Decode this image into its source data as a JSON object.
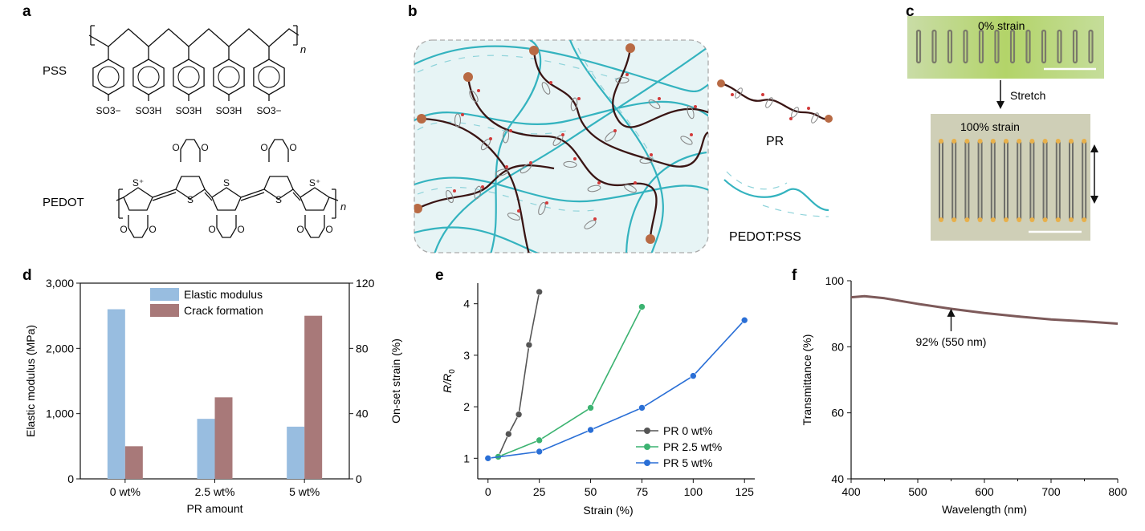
{
  "panels": {
    "a": {
      "letter": "a",
      "pss_label": "PSS",
      "pedot_label": "PEDOT",
      "pss_groups": [
        "SO3−",
        "SO3H",
        "SO3H",
        "SO3H",
        "SO3−"
      ],
      "sub_n": "n",
      "s_plus": "S⁺",
      "s": "S",
      "o": "O"
    },
    "b": {
      "letter": "b",
      "label_pr": "PR",
      "label_pedot": "PEDOT:PSS"
    },
    "c": {
      "letter": "c",
      "label_top": "0% strain",
      "label_stretch": "Stretch",
      "label_bottom": "100% strain"
    },
    "d": {
      "letter": "d"
    },
    "e": {
      "letter": "e"
    },
    "f": {
      "letter": "f"
    }
  },
  "chart_data": [
    {
      "id": "d",
      "type": "bar",
      "categories": [
        "0 wt%",
        "2.5 wt%",
        "5 wt%"
      ],
      "series": [
        {
          "name": "Elastic modulus",
          "values": [
            2600,
            920,
            800
          ],
          "axis": "left",
          "color": "#98bde0"
        },
        {
          "name": "Crack formation",
          "values": [
            20,
            50,
            100
          ],
          "axis": "right",
          "color": "#a87979"
        }
      ],
      "xlabel": "PR amount",
      "ylabel": "Elastic modulus (MPa)",
      "ylabel_right": "On-set strain (%)",
      "ylim": [
        0,
        3000
      ],
      "ylim_right": [
        0,
        120
      ],
      "yticks": [
        "0",
        "1,000",
        "2,000",
        "3,000"
      ],
      "yticks_right": [
        "0",
        "40",
        "80",
        "120"
      ],
      "legend": "top"
    },
    {
      "id": "e",
      "type": "line",
      "series": [
        {
          "name": "PR 0 wt%",
          "color": "#555555",
          "x": [
            5,
            10,
            15,
            20,
            25
          ],
          "y": [
            1.03,
            1.47,
            1.85,
            3.2,
            4.23
          ]
        },
        {
          "name": "PR 2.5 wt%",
          "color": "#3cb371",
          "x": [
            5,
            25,
            50,
            75
          ],
          "y": [
            1.03,
            1.35,
            1.98,
            3.94
          ]
        },
        {
          "name": "PR 5 wt%",
          "color": "#2a6fd6",
          "x": [
            0,
            25,
            50,
            75,
            100,
            125
          ],
          "y": [
            1.0,
            1.13,
            1.55,
            1.98,
            2.6,
            3.68
          ]
        }
      ],
      "xlabel": "Strain (%)",
      "ylabel": "R/R0",
      "ylabel_main": "R/R",
      "ylabel_sub": "0",
      "xlim": [
        -5,
        130
      ],
      "ylim": [
        0.6,
        4.4
      ],
      "xticks": [
        "0",
        "25",
        "50",
        "75",
        "100",
        "125"
      ],
      "yticks": [
        "1",
        "2",
        "3",
        "4"
      ],
      "legend": "bottom-right"
    },
    {
      "id": "f",
      "type": "line",
      "series": [
        {
          "name": "Transmittance",
          "color": "#7d5a5a",
          "x": [
            400,
            420,
            450,
            500,
            550,
            600,
            650,
            700,
            750,
            800
          ],
          "y": [
            95.0,
            95.3,
            94.7,
            93.0,
            91.5,
            90.2,
            89.2,
            88.3,
            87.7,
            87.0
          ]
        }
      ],
      "xlabel": "Wavelength (nm)",
      "ylabel": "Transmittance (%)",
      "xlim": [
        400,
        800
      ],
      "ylim": [
        40,
        100
      ],
      "xticks": [
        "400",
        "500",
        "600",
        "700",
        "800"
      ],
      "yticks": [
        "40",
        "60",
        "80",
        "100"
      ],
      "annotation": {
        "text": "92% (550 nm)",
        "x": 550,
        "y": 92
      }
    }
  ]
}
